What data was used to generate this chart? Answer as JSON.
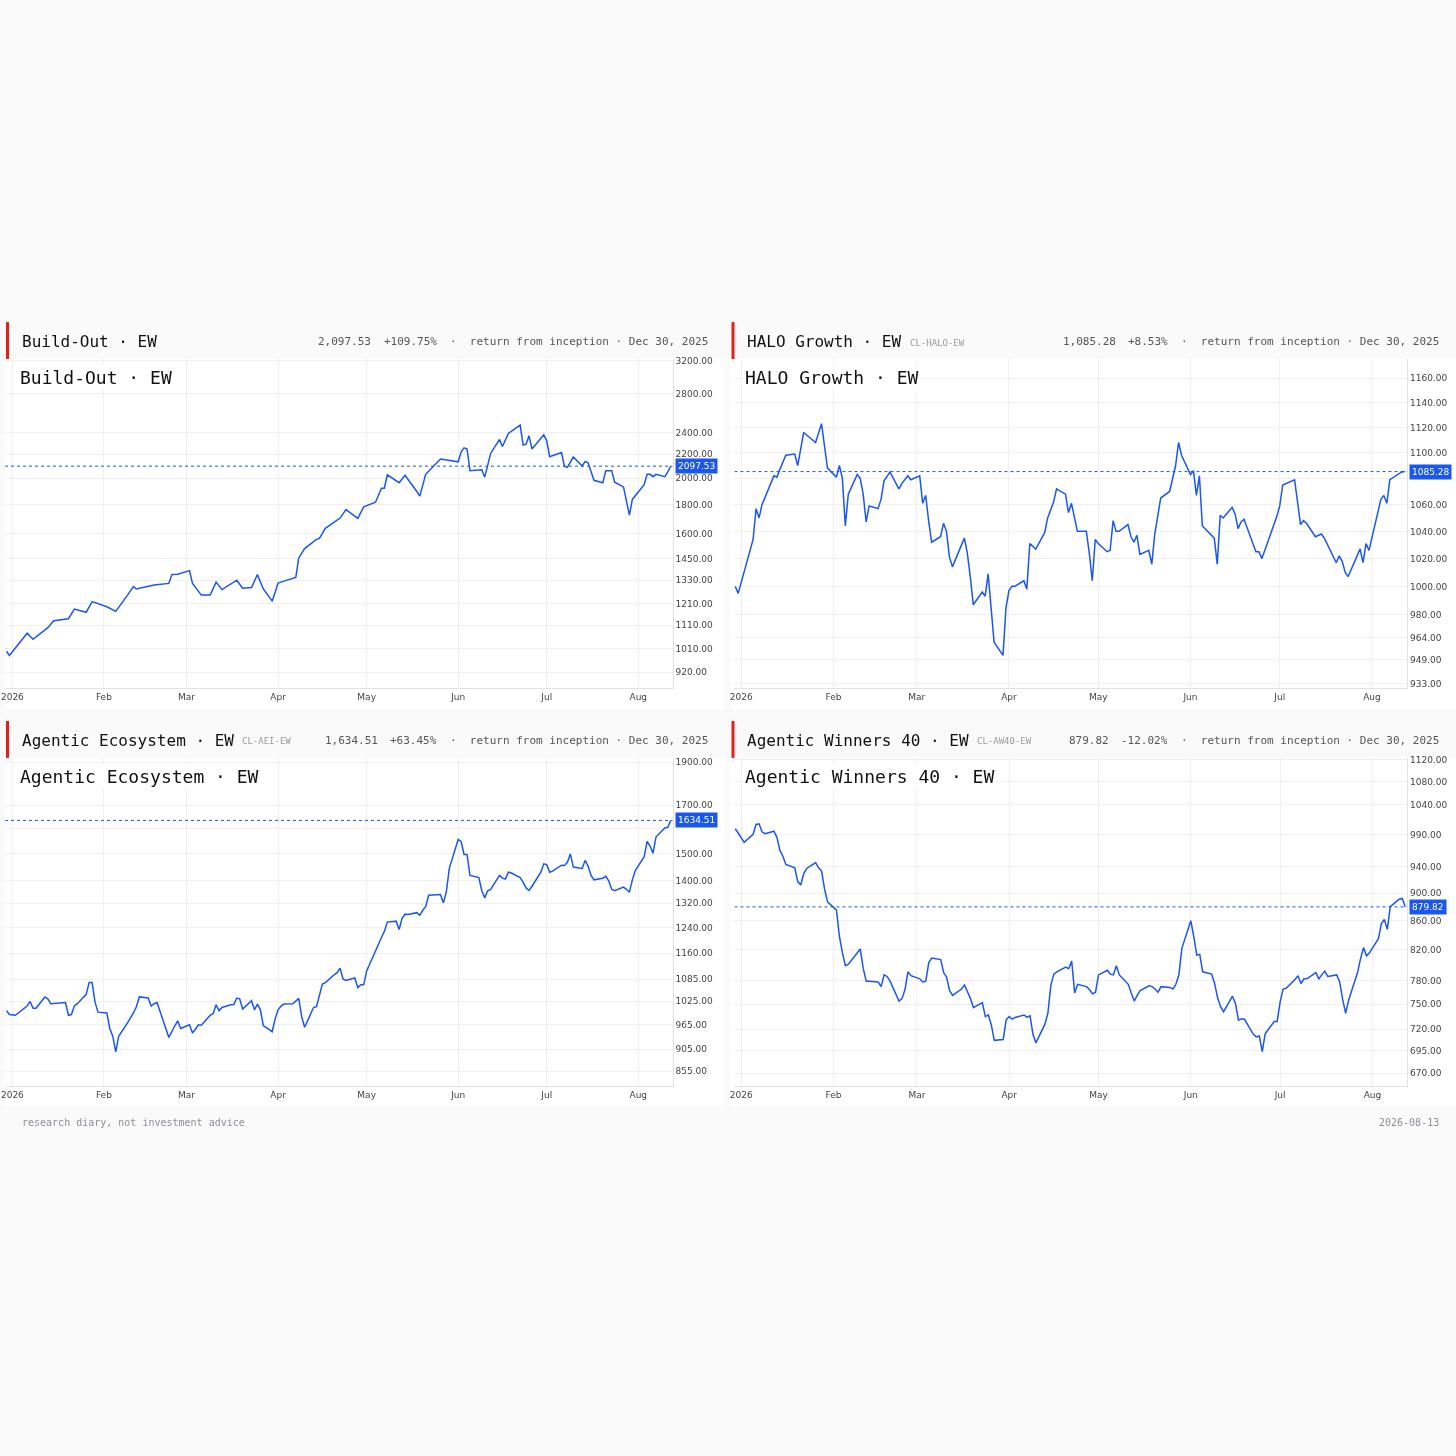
{
  "chart_data": [
    {
      "type": "line",
      "title": "Build-Out · EW",
      "log": "y",
      "grid": true,
      "annotations": [
        "2,097.53",
        "+109.75%",
        "·  return from inception · Dec 30, 2025",
        "Build-Out · EW"
      ],
      "x": [
        "2025-12-30",
        "2025-12-31",
        "2026-01-06",
        "2026-01-08",
        "2026-01-13",
        "2026-01-15",
        "2026-01-20",
        "2026-01-22",
        "2026-01-26",
        "2026-01-28",
        "2026-02-02",
        "2026-02-05",
        "2026-02-09",
        "2026-02-11",
        "2026-02-12",
        "2026-02-18",
        "2026-02-23",
        "2026-02-24",
        "2026-02-26",
        "2026-03-02",
        "2026-03-03",
        "2026-03-06",
        "2026-03-09",
        "2026-03-11",
        "2026-03-13",
        "2026-03-18",
        "2026-03-20",
        "2026-03-23",
        "2026-03-25",
        "2026-03-27",
        "2026-03-30",
        "2026-04-01",
        "2026-04-03",
        "2026-04-07",
        "2026-04-08",
        "2026-04-10",
        "2026-04-14",
        "2026-04-15",
        "2026-04-17",
        "2026-04-22",
        "2026-04-24",
        "2026-04-28",
        "2026-04-30",
        "2026-05-04",
        "2026-05-06",
        "2026-05-07",
        "2026-05-08",
        "2026-05-12",
        "2026-05-14",
        "2026-05-18",
        "2026-05-19",
        "2026-05-21",
        "2026-05-26",
        "2026-06-01",
        "2026-06-02",
        "2026-06-03",
        "2026-06-04",
        "2026-06-05",
        "2026-06-09",
        "2026-06-10",
        "2026-06-12",
        "2026-06-15",
        "2026-06-16",
        "2026-06-18",
        "2026-06-22",
        "2026-06-23",
        "2026-06-24",
        "2026-06-25",
        "2026-06-26",
        "2026-06-30",
        "2026-07-01",
        "2026-07-02",
        "2026-07-06",
        "2026-07-07",
        "2026-07-08",
        "2026-07-10",
        "2026-07-13",
        "2026-07-14",
        "2026-07-15",
        "2026-07-17",
        "2026-07-20",
        "2026-07-21",
        "2026-07-23",
        "2026-07-24",
        "2026-07-27",
        "2026-07-29",
        "2026-07-30",
        "2026-08-03",
        "2026-08-04",
        "2026-08-05",
        "2026-08-06",
        "2026-08-07",
        "2026-08-10",
        "2026-08-11",
        "2026-08-12"
      ],
      "series": [
        {
          "color": "#1a56f0",
          "values": [
            1000,
            983,
            1075,
            1049,
            1099,
            1130,
            1139,
            1184,
            1169,
            1220,
            1195,
            1173,
            1252,
            1295,
            1283,
            1304,
            1312,
            1359,
            1361,
            1381,
            1312,
            1252,
            1252,
            1319,
            1280,
            1329,
            1287,
            1291,
            1359,
            1283,
            1222,
            1314,
            1324,
            1344,
            1453,
            1508,
            1565,
            1571,
            1636,
            1704,
            1763,
            1702,
            1782,
            1816,
            1920,
            1920,
            2026,
            1963,
            2022,
            1895,
            1860,
            2030,
            2158,
            2134,
            2219,
            2257,
            2247,
            2060,
            2068,
            2007,
            2207,
            2334,
            2269,
            2391,
            2472,
            2282,
            2290,
            2368,
            2247,
            2377,
            2321,
            2178,
            2215,
            2095,
            2087,
            2175,
            2099,
            2138,
            2126,
            1982,
            1963,
            2060,
            2060,
            1967,
            1930,
            1724,
            1836,
            1948,
            2030,
            2030,
            2011,
            2030,
            2011,
            2049,
            2097.53
          ]
        }
      ],
      "xlim": [
        "2025-12-29T12:00",
        "2026-08-12T16:00"
      ],
      "xticks": [
        {
          "value": "2026-01-01",
          "label": "2026"
        },
        {
          "value": "2026-02-01",
          "label": "Feb"
        },
        {
          "value": "2026-03-01",
          "label": "Mar"
        },
        {
          "value": "2026-04-01",
          "label": "Apr"
        },
        {
          "value": "2026-05-01",
          "label": "May"
        },
        {
          "value": "2026-06-01",
          "label": "Jun"
        },
        {
          "value": "2026-07-01",
          "label": "Jul"
        },
        {
          "value": "2026-08-01",
          "label": "Aug"
        }
      ],
      "ylim": [
        863,
        3220
      ],
      "yticks": [
        {
          "value": 920,
          "label": "920.00"
        },
        {
          "value": 1010,
          "label": "1010.00"
        },
        {
          "value": 1110,
          "label": "1110.00"
        },
        {
          "value": 1210,
          "label": "1210.00"
        },
        {
          "value": 1330,
          "label": "1330.00"
        },
        {
          "value": 1450,
          "label": "1450.00"
        },
        {
          "value": 1600,
          "label": "1600.00"
        },
        {
          "value": 1800,
          "label": "1800.00"
        },
        {
          "value": 2000,
          "label": "2000.00"
        },
        {
          "value": 2200,
          "label": "2200.00"
        },
        {
          "value": 2400,
          "label": "2400.00"
        },
        {
          "value": 2800,
          "label": "2800.00"
        },
        {
          "value": 3200,
          "label": "3200.00"
        }
      ],
      "ref_lines": [
        {
          "axis": "y",
          "value": 2097.53,
          "label": "2097.53",
          "color": "#1a56f0",
          "line_style": "dotted"
        }
      ]
    },
    {
      "type": "line",
      "title": "HALO Growth · EW",
      "subtitle": "CL-HALO-EW",
      "log": "y",
      "grid": true,
      "annotations": [
        "1,085.28",
        "+8.53%",
        "·  return from inception · Dec 30, 2025",
        "HALO Growth · EW"
      ],
      "x": [
        "2025-12-30",
        "2025-12-31",
        "2026-01-05",
        "2026-01-06",
        "2026-01-07",
        "2026-01-08",
        "2026-01-12",
        "2026-01-13",
        "2026-01-14",
        "2026-01-16",
        "2026-01-19",
        "2026-01-20",
        "2026-01-22",
        "2026-01-26",
        "2026-01-28",
        "2026-01-30",
        "2026-02-02",
        "2026-02-03",
        "2026-02-04",
        "2026-02-05",
        "2026-02-06",
        "2026-02-09",
        "2026-02-10",
        "2026-02-11",
        "2026-02-12",
        "2026-02-13",
        "2026-02-16",
        "2026-02-17",
        "2026-02-18",
        "2026-02-20",
        "2026-02-23",
        "2026-02-24",
        "2026-02-26",
        "2026-02-27",
        "2026-03-02",
        "2026-03-03",
        "2026-03-04",
        "2026-03-05",
        "2026-03-06",
        "2026-03-09",
        "2026-03-10",
        "2026-03-11",
        "2026-03-12",
        "2026-03-13",
        "2026-03-17",
        "2026-03-18",
        "2026-03-19",
        "2026-03-20",
        "2026-03-23",
        "2026-03-24",
        "2026-03-25",
        "2026-03-27",
        "2026-03-30",
        "2026-03-31",
        "2026-04-01",
        "2026-04-02",
        "2026-04-03",
        "2026-04-06",
        "2026-04-07",
        "2026-04-08",
        "2026-04-10",
        "2026-04-13",
        "2026-04-14",
        "2026-04-16",
        "2026-04-17",
        "2026-04-20",
        "2026-04-21",
        "2026-04-22",
        "2026-04-24",
        "2026-04-27",
        "2026-04-28",
        "2026-04-29",
        "2026-04-30",
        "2026-05-01",
        "2026-05-04",
        "2026-05-05",
        "2026-05-06",
        "2026-05-07",
        "2026-05-08",
        "2026-05-11",
        "2026-05-12",
        "2026-05-13",
        "2026-05-14",
        "2026-05-15",
        "2026-05-18",
        "2026-05-19",
        "2026-05-20",
        "2026-05-22",
        "2026-05-25",
        "2026-05-27",
        "2026-05-28",
        "2026-05-29",
        "2026-06-01",
        "2026-06-02",
        "2026-06-03",
        "2026-06-04",
        "2026-06-05",
        "2026-06-09",
        "2026-06-10",
        "2026-06-11",
        "2026-06-12",
        "2026-06-15",
        "2026-06-16",
        "2026-06-17",
        "2026-06-18",
        "2026-06-19",
        "2026-06-23",
        "2026-06-24",
        "2026-06-25",
        "2026-06-26",
        "2026-06-30",
        "2026-07-01",
        "2026-07-02",
        "2026-07-06",
        "2026-07-08",
        "2026-07-09",
        "2026-07-10",
        "2026-07-13",
        "2026-07-15",
        "2026-07-16",
        "2026-07-20",
        "2026-07-21",
        "2026-07-22",
        "2026-07-23",
        "2026-07-24",
        "2026-07-27",
        "2026-07-28",
        "2026-07-29",
        "2026-07-30",
        "2026-07-31",
        "2026-08-04",
        "2026-08-05",
        "2026-08-06",
        "2026-08-07",
        "2026-08-11",
        "2026-08-12"
      ],
      "series": [
        {
          "color": "#1a56f0",
          "values": [
            1000,
            995,
            1034,
            1057,
            1050,
            1060,
            1082,
            1081,
            1087,
            1098,
            1099,
            1090,
            1116,
            1108,
            1123,
            1088,
            1081,
            1090,
            1080,
            1044,
            1068,
            1083,
            1080,
            1068,
            1047,
            1059,
            1057,
            1064,
            1078,
            1085,
            1072,
            1076,
            1082,
            1079,
            1082,
            1061,
            1067,
            1048,
            1032,
            1036,
            1046,
            1040,
            1021,
            1014,
            1035,
            1024,
            1007,
            987,
            996,
            993,
            1009,
            961,
            952,
            985,
            997,
            1000,
            1000,
            1004,
            998,
            1031,
            1027,
            1039,
            1050,
            1062,
            1072,
            1068,
            1054,
            1061,
            1040,
            1040,
            1024,
            1004,
            1034,
            1031,
            1025,
            1026,
            1048,
            1040,
            1040,
            1045,
            1036,
            1032,
            1037,
            1023,
            1026,
            1016,
            1038,
            1065,
            1070,
            1090,
            1108,
            1098,
            1083,
            1086,
            1067,
            1082,
            1044,
            1035,
            1016,
            1052,
            1050,
            1058,
            1053,
            1042,
            1047,
            1049,
            1025,
            1025,
            1020,
            1026,
            1051,
            1059,
            1075,
            1079,
            1045,
            1048,
            1046,
            1036,
            1038,
            1035,
            1017,
            1022,
            1018,
            1010,
            1007,
            1022,
            1027,
            1017,
            1031,
            1026,
            1064,
            1067,
            1061,
            1079,
            1085,
            1085.28
          ]
        }
      ],
      "xlim": [
        "2025-12-29T18:00",
        "2026-08-12T20:00"
      ],
      "xticks": [
        {
          "value": "2026-01-01",
          "label": "2026"
        },
        {
          "value": "2026-02-01",
          "label": "Feb"
        },
        {
          "value": "2026-03-01",
          "label": "Mar"
        },
        {
          "value": "2026-04-01",
          "label": "Apr"
        },
        {
          "value": "2026-05-01",
          "label": "May"
        },
        {
          "value": "2026-06-01",
          "label": "Jun"
        },
        {
          "value": "2026-07-01",
          "label": "Jul"
        },
        {
          "value": "2026-08-01",
          "label": "Aug"
        }
      ],
      "ylim": [
        930,
        1176
      ],
      "yticks": [
        {
          "value": 933,
          "label": "933.00"
        },
        {
          "value": 949,
          "label": "949.00"
        },
        {
          "value": 964,
          "label": "964.00"
        },
        {
          "value": 980,
          "label": "980.00"
        },
        {
          "value": 1000,
          "label": "1000.00"
        },
        {
          "value": 1020,
          "label": "1020.00"
        },
        {
          "value": 1040,
          "label": "1040.00"
        },
        {
          "value": 1060,
          "label": "1060.00"
        },
        {
          "value": 1080,
          "label": null
        },
        {
          "value": 1100,
          "label": "1100.00"
        },
        {
          "value": 1120,
          "label": "1120.00"
        },
        {
          "value": 1140,
          "label": "1140.00"
        },
        {
          "value": 1160,
          "label": "1160.00"
        }
      ],
      "ref_lines": [
        {
          "axis": "y",
          "value": 1085.28,
          "label": "1085.28",
          "color": "#1a56f0",
          "line_style": "dotted"
        }
      ]
    },
    {
      "type": "line",
      "title": "Agentic Ecosystem · EW",
      "subtitle": "CL-AEI-EW",
      "log": "y",
      "grid": true,
      "annotations": [
        "1,634.51",
        "+63.45%",
        "·  return from inception · Dec 30, 2025",
        "Agentic Ecosystem · EW"
      ],
      "x": [
        "2025-12-30",
        "2025-12-31",
        "2026-01-02",
        "2026-01-06",
        "2026-01-07",
        "2026-01-08",
        "2026-01-09",
        "2026-01-12",
        "2026-01-13",
        "2026-01-14",
        "2026-01-19",
        "2026-01-20",
        "2026-01-21",
        "2026-01-22",
        "2026-01-23",
        "2026-01-26",
        "2026-01-27",
        "2026-01-28",
        "2026-01-29",
        "2026-01-30",
        "2026-02-02",
        "2026-02-03",
        "2026-02-04",
        "2026-02-05",
        "2026-02-06",
        "2026-02-09",
        "2026-02-11",
        "2026-02-12",
        "2026-02-13",
        "2026-02-16",
        "2026-02-17",
        "2026-02-18",
        "2026-02-19",
        "2026-02-23",
        "2026-02-25",
        "2026-02-26",
        "2026-02-27",
        "2026-03-02",
        "2026-03-03",
        "2026-03-04",
        "2026-03-05",
        "2026-03-06",
        "2026-03-09",
        "2026-03-10",
        "2026-03-11",
        "2026-03-12",
        "2026-03-13",
        "2026-03-16",
        "2026-03-17",
        "2026-03-18",
        "2026-03-19",
        "2026-03-20",
        "2026-03-23",
        "2026-03-24",
        "2026-03-25",
        "2026-03-26",
        "2026-03-27",
        "2026-03-30",
        "2026-03-31",
        "2026-04-01",
        "2026-04-02",
        "2026-04-03",
        "2026-04-06",
        "2026-04-08",
        "2026-04-09",
        "2026-04-10",
        "2026-04-13",
        "2026-04-14",
        "2026-04-16",
        "2026-04-17",
        "2026-04-20",
        "2026-04-21",
        "2026-04-22",
        "2026-04-23",
        "2026-04-24",
        "2026-04-27",
        "2026-04-28",
        "2026-04-29",
        "2026-04-30",
        "2026-05-01",
        "2026-05-05",
        "2026-05-06",
        "2026-05-07",
        "2026-05-08",
        "2026-05-11",
        "2026-05-12",
        "2026-05-13",
        "2026-05-14",
        "2026-05-15",
        "2026-05-18",
        "2026-05-19",
        "2026-05-20",
        "2026-05-21",
        "2026-05-22",
        "2026-05-26",
        "2026-05-27",
        "2026-05-28",
        "2026-05-29",
        "2026-06-01",
        "2026-06-02",
        "2026-06-03",
        "2026-06-04",
        "2026-06-05",
        "2026-06-08",
        "2026-06-09",
        "2026-06-10",
        "2026-06-11",
        "2026-06-12",
        "2026-06-15",
        "2026-06-16",
        "2026-06-17",
        "2026-06-18",
        "2026-06-19",
        "2026-06-22",
        "2026-06-23",
        "2026-06-24",
        "2026-06-25",
        "2026-06-26",
        "2026-06-29",
        "2026-06-30",
        "2026-07-01",
        "2026-07-02",
        "2026-07-03",
        "2026-07-06",
        "2026-07-07",
        "2026-07-08",
        "2026-07-09",
        "2026-07-10",
        "2026-07-13",
        "2026-07-14",
        "2026-07-15",
        "2026-07-16",
        "2026-07-17",
        "2026-07-20",
        "2026-07-21",
        "2026-07-22",
        "2026-07-23",
        "2026-07-24",
        "2026-07-27",
        "2026-07-28",
        "2026-07-29",
        "2026-07-30",
        "2026-07-31",
        "2026-08-03",
        "2026-08-04",
        "2026-08-05",
        "2026-08-06",
        "2026-08-07",
        "2026-08-10",
        "2026-08-11",
        "2026-08-12"
      ],
      "series": [
        {
          "color": "#1a56f0",
          "values": [
            1000,
            990,
            988,
            1012,
            1024,
            1006,
            1006,
            1036,
            1031,
            1018,
            1021,
            988,
            990,
            1012,
            1018,
            1043,
            1075,
            1075,
            1022,
            996,
            994,
            955,
            936,
            899,
            936,
            969,
            994,
            1010,
            1036,
            1033,
            1012,
            1018,
            1021,
            933,
            961,
            974,
            955,
            964,
            944,
            953,
            964,
            963,
            988,
            992,
            1015,
            1000,
            1008,
            1015,
            1016,
            1033,
            1031,
            1004,
            1026,
            1002,
            1017,
            1002,
            962,
            947,
            979,
            1002,
            1012,
            1017,
            1018,
            1032,
            984,
            958,
            1008,
            1010,
            1071,
            1075,
            1097,
            1103,
            1116,
            1085,
            1081,
            1088,
            1061,
            1069,
            1069,
            1108,
            1187,
            1208,
            1227,
            1257,
            1260,
            1233,
            1269,
            1283,
            1282,
            1288,
            1279,
            1296,
            1308,
            1347,
            1350,
            1321,
            1360,
            1444,
            1556,
            1548,
            1497,
            1497,
            1418,
            1410,
            1363,
            1338,
            1363,
            1368,
            1418,
            1408,
            1405,
            1430,
            1427,
            1410,
            1393,
            1373,
            1364,
            1379,
            1430,
            1461,
            1458,
            1430,
            1434,
            1456,
            1455,
            1467,
            1499,
            1449,
            1444,
            1474,
            1453,
            1418,
            1402,
            1408,
            1415,
            1398,
            1368,
            1363,
            1376,
            1368,
            1358,
            1402,
            1436,
            1488,
            1548,
            1530,
            1502,
            1566,
            1603,
            1606,
            1634.51
          ]
        }
      ],
      "xlim": [
        "2025-12-29T12:00",
        "2026-08-12T16:00"
      ],
      "xticks": [
        {
          "value": "2026-01-01",
          "label": "2026"
        },
        {
          "value": "2026-02-01",
          "label": "Feb"
        },
        {
          "value": "2026-03-01",
          "label": "Mar"
        },
        {
          "value": "2026-04-01",
          "label": "Apr"
        },
        {
          "value": "2026-05-01",
          "label": "May"
        },
        {
          "value": "2026-06-01",
          "label": "Jun"
        },
        {
          "value": "2026-07-01",
          "label": "Jul"
        },
        {
          "value": "2026-08-01",
          "label": "Aug"
        }
      ],
      "ylim": [
        823,
        1921
      ],
      "yticks": [
        {
          "value": 855,
          "label": "855.00"
        },
        {
          "value": 905,
          "label": "905.00"
        },
        {
          "value": 965,
          "label": "965.00"
        },
        {
          "value": 1025,
          "label": "1025.00"
        },
        {
          "value": 1085,
          "label": "1085.00"
        },
        {
          "value": 1160,
          "label": "1160.00"
        },
        {
          "value": 1240,
          "label": "1240.00"
        },
        {
          "value": 1320,
          "label": "1320.00"
        },
        {
          "value": 1400,
          "label": "1400.00"
        },
        {
          "value": 1500,
          "label": "1500.00"
        },
        {
          "value": 1600,
          "label": null
        },
        {
          "value": 1700,
          "label": "1700.00"
        },
        {
          "value": 1900,
          "label": "1900.00"
        }
      ],
      "ref_lines": [
        {
          "axis": "y",
          "value": 1634.51,
          "label": "1634.51",
          "color": "#1a56f0",
          "line_style": "dotted"
        }
      ]
    },
    {
      "type": "line",
      "title": "Agentic Winners 40 · EW",
      "subtitle": "CL-AW40-EW",
      "log": "y",
      "grid": true,
      "annotations": [
        "879.82",
        "-12.02%",
        "·  return from inception · Dec 30, 2025",
        "Agentic Winners 40 · EW",
        "research diary, not investment advice",
        "2026-08-13"
      ],
      "x": [
        "2025-12-30",
        "2025-12-31",
        "2026-01-02",
        "2026-01-05",
        "2026-01-06",
        "2026-01-07",
        "2026-01-08",
        "2026-01-09",
        "2026-01-12",
        "2026-01-13",
        "2026-01-14",
        "2026-01-15",
        "2026-01-16",
        "2026-01-19",
        "2026-01-20",
        "2026-01-21",
        "2026-01-22",
        "2026-01-23",
        "2026-01-26",
        "2026-01-27",
        "2026-01-28",
        "2026-01-29",
        "2026-01-30",
        "2026-02-02",
        "2026-02-03",
        "2026-02-04",
        "2026-02-05",
        "2026-02-06",
        "2026-02-10",
        "2026-02-11",
        "2026-02-12",
        "2026-02-13",
        "2026-02-16",
        "2026-02-17",
        "2026-02-18",
        "2026-02-19",
        "2026-02-20",
        "2026-02-23",
        "2026-02-24",
        "2026-02-25",
        "2026-02-26",
        "2026-02-27",
        "2026-03-02",
        "2026-03-03",
        "2026-03-04",
        "2026-03-05",
        "2026-03-06",
        "2026-03-09",
        "2026-03-10",
        "2026-03-11",
        "2026-03-12",
        "2026-03-13",
        "2026-03-16",
        "2026-03-17",
        "2026-03-19",
        "2026-03-20",
        "2026-03-23",
        "2026-03-24",
        "2026-03-25",
        "2026-03-26",
        "2026-03-27",
        "2026-03-30",
        "2026-03-31",
        "2026-04-01",
        "2026-04-02",
        "2026-04-03",
        "2026-04-06",
        "2026-04-07",
        "2026-04-08",
        "2026-04-09",
        "2026-04-10",
        "2026-04-13",
        "2026-04-14",
        "2026-04-15",
        "2026-04-16",
        "2026-04-17",
        "2026-04-20",
        "2026-04-21",
        "2026-04-22",
        "2026-04-23",
        "2026-04-24",
        "2026-04-27",
        "2026-04-28",
        "2026-04-29",
        "2026-04-30",
        "2026-05-01",
        "2026-05-04",
        "2026-05-05",
        "2026-05-06",
        "2026-05-07",
        "2026-05-08",
        "2026-05-11",
        "2026-05-12",
        "2026-05-13",
        "2026-05-14",
        "2026-05-15",
        "2026-05-18",
        "2026-05-19",
        "2026-05-20",
        "2026-05-21",
        "2026-05-22",
        "2026-05-25",
        "2026-05-26",
        "2026-05-27",
        "2026-05-28",
        "2026-05-29",
        "2026-06-01",
        "2026-06-02",
        "2026-06-03",
        "2026-06-04",
        "2026-06-05",
        "2026-06-08",
        "2026-06-09",
        "2026-06-10",
        "2026-06-11",
        "2026-06-12",
        "2026-06-15",
        "2026-06-16",
        "2026-06-17",
        "2026-06-18",
        "2026-06-19",
        "2026-06-22",
        "2026-06-23",
        "2026-06-24",
        "2026-06-25",
        "2026-06-26",
        "2026-06-29",
        "2026-06-30",
        "2026-07-01",
        "2026-07-02",
        "2026-07-03",
        "2026-07-06",
        "2026-07-07",
        "2026-07-08",
        "2026-07-09",
        "2026-07-10",
        "2026-07-13",
        "2026-07-14",
        "2026-07-15",
        "2026-07-16",
        "2026-07-17",
        "2026-07-20",
        "2026-07-21",
        "2026-07-22",
        "2026-07-23",
        "2026-07-24",
        "2026-07-27",
        "2026-07-28",
        "2026-07-29",
        "2026-07-30",
        "2026-07-31",
        "2026-08-03",
        "2026-08-04",
        "2026-08-05",
        "2026-08-06",
        "2026-08-07",
        "2026-08-10",
        "2026-08-11",
        "2026-08-12"
      ],
      "series": [
        {
          "color": "#1a56f0",
          "values": [
            1000,
            993,
            978,
            991,
            1007,
            1008,
            995,
            992,
            996,
            986,
            965,
            956,
            943,
            938,
            917,
            912,
            929,
            937,
            946,
            938,
            933,
            906,
            887,
            875,
            838,
            816,
            799,
            801,
            821,
            795,
            779,
            779,
            778,
            772,
            787,
            785,
            779,
            754,
            757,
            768,
            791,
            786,
            782,
            778,
            779,
            803,
            809,
            807,
            790,
            784,
            767,
            761,
            769,
            774,
            757,
            746,
            752,
            735,
            737,
            725,
            707,
            708,
            731,
            735,
            732,
            734,
            737,
            734,
            736,
            714,
            704,
            726,
            739,
            774,
            788,
            791,
            797,
            795,
            805,
            764,
            775,
            772,
            768,
            763,
            765,
            787,
            793,
            788,
            787,
            799,
            787,
            775,
            764,
            754,
            761,
            767,
            773,
            772,
            769,
            765,
            772,
            771,
            769,
            775,
            787,
            822,
            860,
            838,
            813,
            814,
            791,
            788,
            776,
            758,
            747,
            741,
            760,
            751,
            731,
            732,
            732,
            714,
            711,
            712,
            694,
            715,
            729,
            729,
            753,
            769,
            770,
            781,
            786,
            776,
            782,
            782,
            790,
            782,
            787,
            792,
            785,
            787,
            778,
            756,
            739,
            755,
            790,
            808,
            823,
            812,
            816,
            835,
            856,
            862,
            848,
            880,
            891,
            892,
            879.82
          ]
        }
      ],
      "xlim": [
        "2025-12-29T18:00",
        "2026-08-12T16:00"
      ],
      "xticks": [
        {
          "value": "2026-01-01",
          "label": "2026"
        },
        {
          "value": "2026-02-01",
          "label": "Feb"
        },
        {
          "value": "2026-03-01",
          "label": "Mar"
        },
        {
          "value": "2026-04-01",
          "label": "Apr"
        },
        {
          "value": "2026-05-01",
          "label": "May"
        },
        {
          "value": "2026-06-01",
          "label": "Jun"
        },
        {
          "value": "2026-07-01",
          "label": "Jul"
        },
        {
          "value": "2026-08-01",
          "label": "Aug"
        }
      ],
      "ylim": [
        656,
        1123
      ],
      "yticks": [
        {
          "value": 670,
          "label": "670.00"
        },
        {
          "value": 695,
          "label": "695.00"
        },
        {
          "value": 720,
          "label": "720.00"
        },
        {
          "value": 750,
          "label": "750.00"
        },
        {
          "value": 780,
          "label": "780.00"
        },
        {
          "value": 820,
          "label": "820.00"
        },
        {
          "value": 860,
          "label": "860.00"
        },
        {
          "value": 900,
          "label": "900.00"
        },
        {
          "value": 940,
          "label": "940.00"
        },
        {
          "value": 990,
          "label": "990.00"
        },
        {
          "value": 1040,
          "label": "1040.00"
        },
        {
          "value": 1080,
          "label": "1080.00"
        },
        {
          "value": 1120,
          "label": "1120.00"
        }
      ],
      "ref_lines": [
        {
          "axis": "y",
          "value": 879.82,
          "label": "879.82",
          "color": "#1a56f0",
          "line_style": "dotted"
        }
      ]
    }
  ]
}
